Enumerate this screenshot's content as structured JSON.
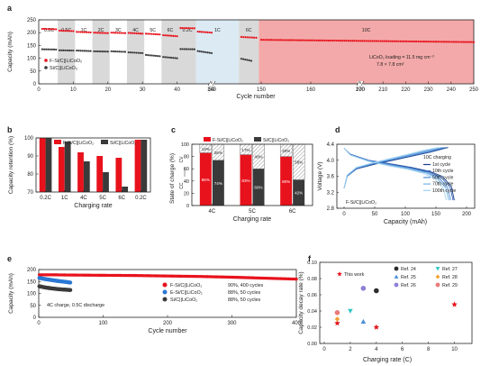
{
  "panels": {
    "a": {
      "letter": "a",
      "xlabel": "Cycle number",
      "ylabel": "Capacity (mAh)",
      "xticks": [
        "0",
        "10",
        "20",
        "30",
        "40",
        "50",
        "140",
        "150",
        "160",
        "170",
        "200",
        "210",
        "220",
        "230",
        "240",
        "250"
      ],
      "yticks": [
        "0",
        "50",
        "100",
        "150",
        "200",
        "250"
      ],
      "rate_labels": [
        "0.2C",
        "0.5C",
        "1C",
        "2C",
        "3C",
        "4C",
        "5C",
        "6C",
        "0.2C",
        "1C",
        "6C",
        "10C"
      ],
      "legend": [
        "F-Si/C||LiCoO₂",
        "Si/C||LiCoO₂"
      ],
      "note_line1": "LiCoO₂  loading = 11.5 mg cm⁻²",
      "note_line2": "7.8 × 7.8 cm²"
    },
    "b": {
      "letter": "b",
      "xlabel": "Charging rate",
      "ylabel": "Capacity  retention (%)",
      "yticks": [
        "70",
        "80",
        "90",
        "100"
      ],
      "categories": [
        "0.2C",
        "1C",
        "4C",
        "5C",
        "6C",
        "0.2C"
      ],
      "legend": [
        "F-Si/C||LiCoO₂",
        "Si/C||LiCoO₂"
      ]
    },
    "c": {
      "letter": "c",
      "xlabel": "Charging rate",
      "ylabel": "State of charge (%)",
      "yticks": [
        "0",
        "20",
        "40",
        "60",
        "80",
        "100"
      ],
      "categories": [
        "4C",
        "5C",
        "6C"
      ],
      "legend": [
        "F-Si/C||LiCoO₂",
        "Si/C||LiCoO₂"
      ],
      "cc_label": "CC",
      "cv_label": "CV",
      "f_cc_labels": [
        "86%",
        "83%",
        "80%"
      ],
      "f_cv_labels": [
        "14%",
        "17%",
        "20%"
      ],
      "s_cc_labels": [
        "74%",
        "60%",
        "42%"
      ],
      "s_cv_labels": [
        "26%",
        "40%",
        "58%"
      ]
    },
    "d": {
      "letter": "d",
      "xlabel": "Capacity (mAh)",
      "ylabel": "Voltage (V)",
      "xticks": [
        "0",
        "50",
        "100",
        "150",
        "200"
      ],
      "yticks": [
        "2.8",
        "3.2",
        "3.6",
        "4.0",
        "4.4"
      ],
      "legend_title": "10C charging",
      "legend": [
        "1st cycle",
        "10th cycle",
        "50th cycle",
        "70th cycle",
        "100th cycle"
      ],
      "cell_label": "F-Si/C||LiCoO₂"
    },
    "e": {
      "letter": "e",
      "xlabel": "Cycle number",
      "ylabel": "Capacity (mAh)",
      "xticks": [
        "0",
        "100",
        "200",
        "300",
        "400"
      ],
      "yticks": [
        "0",
        "50",
        "100",
        "150",
        "200"
      ],
      "legend": [
        {
          "name": "F-Si/C||LiCoO₂",
          "note": "90%, 400 cycles"
        },
        {
          "name": "E-Si/C||LiCoO₂",
          "note": "88%, 50 cycles"
        },
        {
          "name": "Si/C||LiCoO₂",
          "note": "88%, 50 cycles"
        }
      ],
      "condition": "4C charge, 0.5C discharge"
    },
    "f": {
      "letter": "f",
      "xlabel": "Charging rate (C)",
      "ylabel": "Capacity decay rate (%)",
      "xticks": [
        "0",
        "2",
        "4",
        "6",
        "8",
        "10"
      ],
      "yticks": [
        "0.00",
        "0.02",
        "0.04",
        "0.06",
        "0.08",
        "0.10"
      ],
      "legend": [
        "This work",
        "Ref. 24",
        "Ref. 25",
        "Ref. 26",
        "Ref. 27",
        "Ref. 28",
        "Ref. 29"
      ]
    }
  },
  "colors": {
    "f_series": "#e8121c",
    "si_series": "#3a3a3a",
    "e_series": "#2a78d4",
    "band_gray": "#d9d9d9",
    "band_blue": "#dbeaf3",
    "band_red": "#f3a9a9"
  },
  "chart_data": [
    {
      "id": "a",
      "type": "scatter",
      "x_axis": "broken",
      "xlim": [
        0,
        250
      ],
      "ylim": [
        0,
        250
      ],
      "series": [
        {
          "name": "F-Si/C||LiCoO₂",
          "x": [
            1,
            5,
            6,
            10,
            11,
            15,
            16,
            20,
            21,
            25,
            26,
            30,
            31,
            35,
            36,
            40,
            41,
            45,
            46,
            140,
            146,
            149,
            150,
            250
          ],
          "y": [
            215,
            213,
            208,
            206,
            203,
            201,
            200,
            198,
            200,
            198,
            199,
            196,
            196,
            193,
            190,
            186,
            218,
            217,
            204,
            200,
            183,
            180,
            172,
            163
          ]
        },
        {
          "name": "Si/C||LiCoO₂",
          "x": [
            1,
            5,
            6,
            10,
            11,
            15,
            16,
            20,
            21,
            25,
            26,
            30,
            31,
            35,
            36,
            40,
            41,
            45,
            46,
            140,
            146,
            148
          ],
          "y": [
            135,
            134,
            131,
            130,
            130,
            128,
            127,
            126,
            127,
            125,
            123,
            120,
            113,
            108,
            105,
            100,
            136,
            135,
            128,
            120,
            98,
            90
          ]
        }
      ],
      "segments": [
        {
          "label": "0.2C",
          "cycles": [
            1,
            5
          ]
        },
        {
          "label": "0.5C",
          "cycles": [
            6,
            10
          ]
        },
        {
          "label": "1C",
          "cycles": [
            11,
            15
          ]
        },
        {
          "label": "2C",
          "cycles": [
            16,
            20
          ]
        },
        {
          "label": "3C",
          "cycles": [
            21,
            25
          ]
        },
        {
          "label": "4C",
          "cycles": [
            26,
            30
          ]
        },
        {
          "label": "5C",
          "cycles": [
            31,
            35
          ]
        },
        {
          "label": "6C",
          "cycles": [
            36,
            40
          ]
        },
        {
          "label": "0.2C",
          "cycles": [
            41,
            45
          ]
        },
        {
          "label": "1C",
          "cycles": [
            46,
            145
          ]
        },
        {
          "label": "6C",
          "cycles": [
            146,
            149
          ]
        },
        {
          "label": "10C",
          "cycles": [
            150,
            250
          ]
        }
      ]
    },
    {
      "id": "b",
      "type": "bar",
      "ylim": [
        70,
        100
      ],
      "categories": [
        "0.2C",
        "1C",
        "4C",
        "5C",
        "6C",
        "0.2C"
      ],
      "series": [
        {
          "name": "F-Si/C||LiCoO₂",
          "values": [
            100,
            95,
            92,
            90,
            89,
            99
          ]
        },
        {
          "name": "Si/C||LiCoO₂",
          "values": [
            100,
            98,
            87,
            81,
            73,
            99
          ]
        }
      ]
    },
    {
      "id": "c",
      "type": "bar",
      "stacked": true,
      "ylim": [
        0,
        100
      ],
      "categories": [
        "4C",
        "5C",
        "6C"
      ],
      "series": [
        {
          "name": "F-Si/C||LiCoO₂",
          "cc": [
            86,
            83,
            80
          ],
          "cv": [
            14,
            17,
            20
          ]
        },
        {
          "name": "Si/C||LiCoO₂",
          "cc": [
            74,
            60,
            42
          ],
          "cv": [
            26,
            40,
            58
          ]
        }
      ]
    },
    {
      "id": "d",
      "type": "line",
      "xlim": [
        0,
        200
      ],
      "ylim": [
        2.8,
        4.4
      ],
      "series": [
        {
          "name": "1st cycle",
          "charge": [
            [
              0,
              3.3
            ],
            [
              5,
              3.6
            ],
            [
              20,
              3.78
            ],
            [
              50,
              3.9
            ],
            [
              80,
              4.0
            ],
            [
              110,
              4.1
            ],
            [
              140,
              4.2
            ],
            [
              165,
              4.3
            ],
            [
              170,
              4.32
            ]
          ],
          "discharge": [
            [
              0,
              4.3
            ],
            [
              10,
              4.15
            ],
            [
              40,
              4.0
            ],
            [
              80,
              3.9
            ],
            [
              110,
              3.82
            ],
            [
              140,
              3.72
            ],
            [
              160,
              3.6
            ],
            [
              175,
              3.35
            ],
            [
              180,
              3.0
            ]
          ]
        },
        {
          "name": "10th cycle",
          "charge": [
            [
              0,
              3.3
            ],
            [
              5,
              3.6
            ],
            [
              20,
              3.79
            ],
            [
              50,
              3.91
            ],
            [
              80,
              4.01
            ],
            [
              110,
              4.11
            ],
            [
              140,
              4.21
            ],
            [
              162,
              4.3
            ],
            [
              168,
              4.32
            ]
          ],
          "discharge": [
            [
              0,
              4.3
            ],
            [
              10,
              4.15
            ],
            [
              40,
              4.0
            ],
            [
              80,
              3.89
            ],
            [
              110,
              3.81
            ],
            [
              138,
              3.71
            ],
            [
              158,
              3.58
            ],
            [
              173,
              3.33
            ],
            [
              178,
              3.0
            ]
          ]
        },
        {
          "name": "50th cycle",
          "charge": [
            [
              0,
              3.3
            ],
            [
              5,
              3.61
            ],
            [
              20,
              3.8
            ],
            [
              50,
              3.93
            ],
            [
              80,
              4.03
            ],
            [
              110,
              4.13
            ],
            [
              138,
              4.23
            ],
            [
              158,
              4.3
            ],
            [
              164,
              4.32
            ]
          ],
          "discharge": [
            [
              0,
              4.3
            ],
            [
              10,
              4.14
            ],
            [
              40,
              3.99
            ],
            [
              78,
              3.88
            ],
            [
              108,
              3.8
            ],
            [
              135,
              3.7
            ],
            [
              154,
              3.57
            ],
            [
              169,
              3.32
            ],
            [
              174,
              3.0
            ]
          ]
        },
        {
          "name": "70th cycle",
          "charge": [
            [
              0,
              3.3
            ],
            [
              5,
              3.62
            ],
            [
              20,
              3.81
            ],
            [
              50,
              3.94
            ],
            [
              80,
              4.04
            ],
            [
              108,
              4.14
            ],
            [
              134,
              4.24
            ],
            [
              154,
              4.3
            ],
            [
              160,
              4.32
            ]
          ],
          "discharge": [
            [
              0,
              4.3
            ],
            [
              10,
              4.14
            ],
            [
              40,
              3.98
            ],
            [
              76,
              3.87
            ],
            [
              105,
              3.79
            ],
            [
              132,
              3.69
            ],
            [
              151,
              3.56
            ],
            [
              166,
              3.31
            ],
            [
              171,
              3.0
            ]
          ]
        },
        {
          "name": "100th cycle",
          "charge": [
            [
              0,
              3.3
            ],
            [
              5,
              3.63
            ],
            [
              20,
              3.82
            ],
            [
              50,
              3.95
            ],
            [
              78,
              4.05
            ],
            [
              105,
              4.15
            ],
            [
              130,
              4.25
            ],
            [
              148,
              4.3
            ],
            [
              155,
              4.32
            ]
          ],
          "discharge": [
            [
              0,
              4.3
            ],
            [
              10,
              4.13
            ],
            [
              40,
              3.97
            ],
            [
              74,
              3.86
            ],
            [
              102,
              3.78
            ],
            [
              128,
              3.68
            ],
            [
              147,
              3.55
            ],
            [
              162,
              3.3
            ],
            [
              167,
              3.0
            ]
          ]
        }
      ]
    },
    {
      "id": "e",
      "type": "scatter",
      "xlim": [
        0,
        400
      ],
      "ylim": [
        0,
        200
      ],
      "series": [
        {
          "name": "F-Si/C||LiCoO₂",
          "x": [
            1,
            25,
            50,
            100,
            150,
            200,
            250,
            300,
            350,
            400
          ],
          "y": [
            178,
            178,
            177,
            176,
            175,
            173,
            171,
            168,
            164,
            160
          ]
        },
        {
          "name": "E-Si/C||LiCoO₂",
          "x": [
            1,
            10,
            20,
            30,
            40,
            50
          ],
          "y": [
            165,
            160,
            156,
            152,
            149,
            145
          ]
        },
        {
          "name": "Si/C||LiCoO₂",
          "x": [
            1,
            10,
            20,
            30,
            40,
            50
          ],
          "y": [
            130,
            125,
            121,
            118,
            116,
            114
          ]
        }
      ]
    },
    {
      "id": "f",
      "type": "scatter",
      "xlim": [
        0,
        11
      ],
      "ylim": [
        0,
        0.1
      ],
      "series": [
        {
          "name": "This work",
          "marker": "star",
          "color": "#e8121c",
          "x": [
            1,
            4,
            10
          ],
          "y": [
            0.025,
            0.02,
            0.048
          ]
        },
        {
          "name": "Ref. 24",
          "marker": "circle",
          "color": "#2b2b2b",
          "x": [
            4
          ],
          "y": [
            0.065
          ]
        },
        {
          "name": "Ref. 25",
          "marker": "triangle",
          "color": "#4a8fd8",
          "x": [
            3
          ],
          "y": [
            0.027
          ]
        },
        {
          "name": "Ref. 26",
          "marker": "circle",
          "color": "#8f7fd6",
          "x": [
            3
          ],
          "y": [
            0.068
          ]
        },
        {
          "name": "Ref. 27",
          "marker": "triangle-down",
          "color": "#2ec4c4",
          "x": [
            2
          ],
          "y": [
            0.04
          ]
        },
        {
          "name": "Ref. 28",
          "marker": "diamond",
          "color": "#f0a030",
          "x": [
            1
          ],
          "y": [
            0.03
          ]
        },
        {
          "name": "Ref. 29",
          "marker": "circle",
          "color": "#e87a7a",
          "x": [
            1
          ],
          "y": [
            0.038
          ]
        }
      ]
    }
  ]
}
